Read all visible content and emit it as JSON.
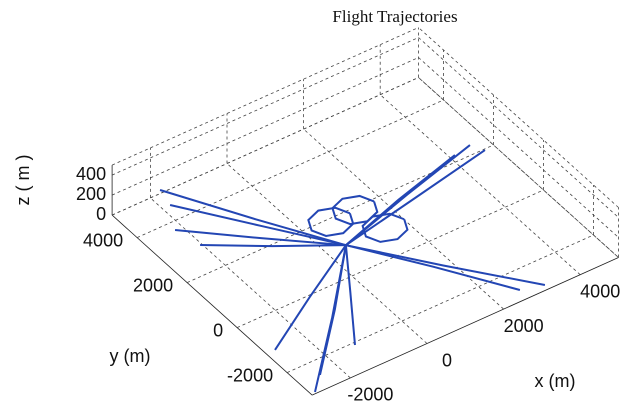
{
  "chart_data": {
    "type": "line3d",
    "title": "Flight Trajectories",
    "x_label": "x (m)",
    "y_label": "y (m)",
    "z_label": "z ( m )",
    "xlim": [
      -3000,
      5000
    ],
    "ylim": [
      -3000,
      5000
    ],
    "zlim": [
      0,
      500
    ],
    "xticks": [
      -2000,
      0,
      2000,
      4000
    ],
    "yticks": [
      -2000,
      0,
      2000,
      4000
    ],
    "zticks": [
      0,
      200,
      400
    ],
    "grid": true,
    "color": "#2346b4",
    "series": [
      {
        "x": [
          -2260,
          -1000,
          200
        ],
        "y": [
          4216,
          2300,
          550
        ],
        "z": [
          300,
          220,
          150
        ]
      },
      {
        "x": [
          -2279,
          -1000,
          200
        ],
        "y": [
          3785,
          2100,
          550
        ],
        "z": [
          250,
          200,
          150
        ]
      },
      {
        "x": [
          -2579,
          -1200,
          200
        ],
        "y": [
          3127,
          1800,
          550
        ],
        "z": [
          200,
          180,
          150
        ]
      },
      {
        "x": [
          -2336,
          -1100,
          200
        ],
        "y": [
          2497,
          1500,
          550
        ],
        "z": [
          150,
          150,
          150
        ]
      },
      {
        "x": [
          3815,
          2000,
          200
        ],
        "y": [
          1126,
          850,
          550
        ],
        "z": [
          400,
          280,
          150
        ]
      },
      {
        "x": [
          3980,
          2100,
          200
        ],
        "y": [
          779,
          650,
          550
        ],
        "z": [
          400,
          280,
          150
        ]
      },
      {
        "x": [
          3457,
          1800,
          200
        ],
        "y": [
          1178,
          900,
          550
        ],
        "z": [
          350,
          250,
          150
        ]
      },
      {
        "x": [
          3089,
          1600,
          200
        ],
        "y": [
          -2984,
          -1200,
          550
        ],
        "z": [
          50,
          100,
          150
        ]
      },
      {
        "x": [
          2557,
          1400,
          200
        ],
        "y": [
          -2799,
          -1100,
          550
        ],
        "z": [
          50,
          100,
          150
        ]
      },
      {
        "x": [
          -2773,
          -1300,
          200
        ],
        "y": [
          -1168,
          -300,
          550
        ],
        "z": [
          0,
          80,
          150
        ]
      },
      {
        "x": [
          -2473,
          -1100,
          200
        ],
        "y": [
          -2508,
          -1000,
          550
        ],
        "z": [
          0,
          80,
          150
        ]
      },
      {
        "x": [
          -2889,
          -1300,
          200
        ],
        "y": [
          -2946,
          -1200,
          550
        ],
        "z": [
          0,
          80,
          150
        ]
      },
      {
        "x": [
          -1283,
          -500,
          200
        ],
        "y": [
          -2085,
          -700,
          550
        ],
        "z": [
          0,
          80,
          150
        ]
      },
      {
        "x": [
          1150,
          1004,
          650,
          296,
          150,
          296,
          650,
          1004,
          1150
        ],
        "y": [
          880,
          1234,
          1380,
          1234,
          880,
          526,
          380,
          526,
          880
        ],
        "z": [
          350,
          350,
          350,
          350,
          350,
          350,
          350,
          350,
          350
        ]
      },
      {
        "x": [
          500,
          354,
          0,
          -354,
          -500,
          -354,
          0,
          354,
          500
        ],
        "y": [
          850,
          1204,
          1350,
          1204,
          850,
          496,
          350,
          496,
          850
        ],
        "z": [
          350,
          350,
          350,
          350,
          350,
          350,
          350,
          350,
          350
        ]
      },
      {
        "x": [
          1330,
          1184,
          830,
          476,
          330,
          476,
          830,
          1184,
          1330
        ],
        "y": [
          -50,
          304,
          450,
          304,
          -50,
          -404,
          -550,
          -404,
          -50
        ],
        "z": [
          350,
          350,
          350,
          350,
          350,
          350,
          350,
          350,
          350
        ]
      }
    ]
  }
}
